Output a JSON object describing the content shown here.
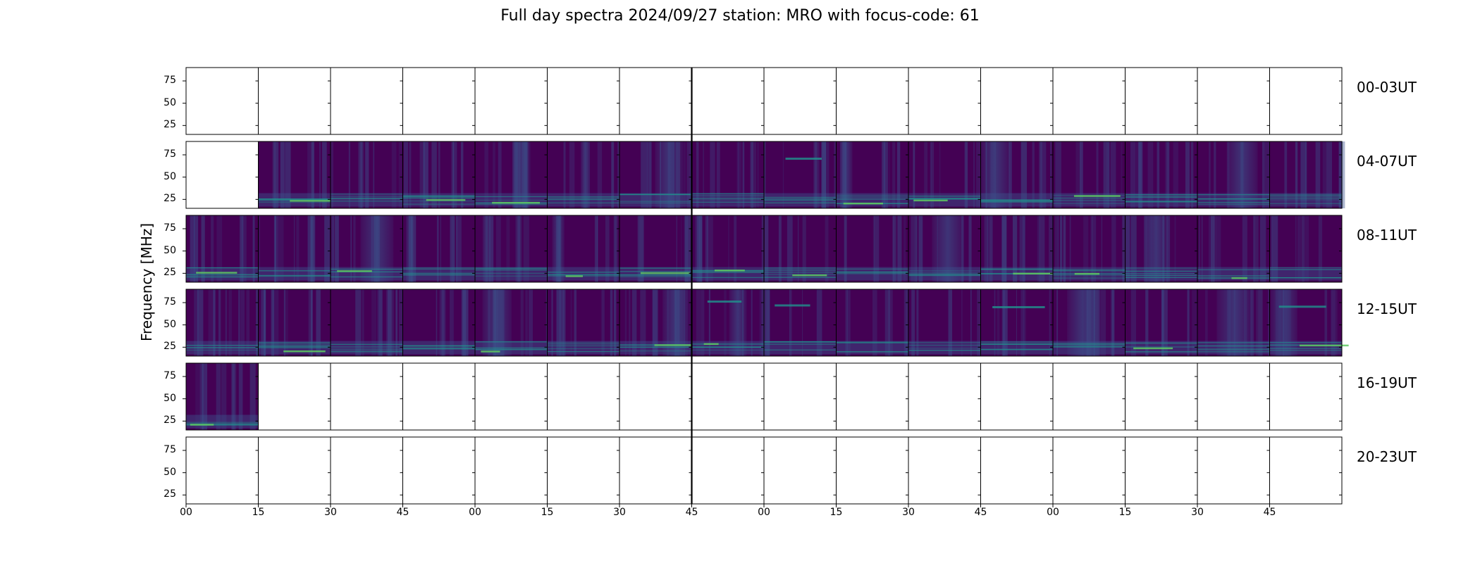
{
  "figure": {
    "title": "Full day spectra 2024/09/27 station: MRO with focus-code: 61",
    "ylabel": "Frequency [MHz]"
  },
  "colors": {
    "background": "#440154",
    "mid": "#3b528b",
    "teal": "#21918c",
    "green": "#5ec962",
    "yellow": "#fde725",
    "axis": "#000000"
  },
  "chart_data": {
    "type": "heatmap",
    "colormap": "viridis",
    "title": "Full day spectra 2024/09/27 station: MRO with focus-code: 61",
    "ylabel": "Frequency [MHz]",
    "ylim": [
      15,
      90
    ],
    "yticks": [
      "25",
      "50",
      "75"
    ],
    "xtick_labels": [
      "00",
      "15",
      "30",
      "45",
      "00",
      "15",
      "30",
      "45",
      "00",
      "15",
      "30",
      "45",
      "00",
      "15",
      "30",
      "45"
    ],
    "row_labels": [
      "00-03UT",
      "04-07UT",
      "08-11UT",
      "12-15UT",
      "16-19UT",
      "20-23UT"
    ],
    "panels_per_row": 16,
    "minutes_per_panel": 15,
    "data_presence": [
      [
        0,
        0,
        0,
        0,
        0,
        0,
        0,
        0,
        0,
        0,
        0,
        0,
        0,
        0,
        0,
        0
      ],
      [
        0,
        1,
        1,
        1,
        1,
        1,
        1,
        1,
        1,
        1,
        1,
        1,
        1,
        1,
        1,
        1
      ],
      [
        1,
        1,
        1,
        1,
        1,
        1,
        1,
        1,
        1,
        1,
        1,
        1,
        1,
        1,
        1,
        1
      ],
      [
        1,
        1,
        1,
        1,
        1,
        1,
        1,
        1,
        1,
        1,
        1,
        1,
        1,
        1,
        1,
        1
      ],
      [
        1,
        0,
        0,
        0,
        0,
        0,
        0,
        0,
        0,
        0,
        0,
        0,
        0,
        0,
        0,
        0
      ],
      [
        0,
        0,
        0,
        0,
        0,
        0,
        0,
        0,
        0,
        0,
        0,
        0,
        0,
        0,
        0,
        0
      ]
    ]
  }
}
